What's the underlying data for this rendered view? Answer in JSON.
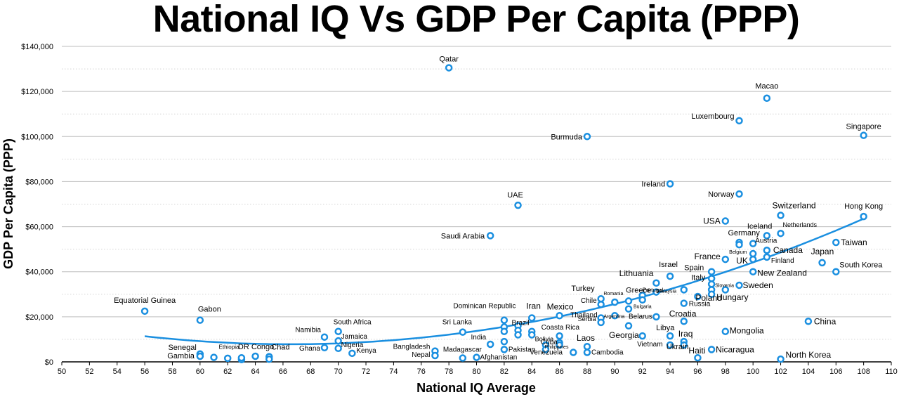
{
  "chart_data": {
    "type": "scatter",
    "title": "National IQ Vs GDP Per Capita (PPP)",
    "xlabel": "National IQ Average",
    "ylabel": "GDP Per Capita (PPP)",
    "xlim": [
      50,
      110
    ],
    "ylim": [
      0,
      140000
    ],
    "x_ticks": [
      "50",
      "52",
      "54",
      "56",
      "58",
      "60",
      "62",
      "64",
      "66",
      "68",
      "70",
      "72",
      "74",
      "76",
      "78",
      "80",
      "82",
      "84",
      "86",
      "88",
      "90",
      "92",
      "94",
      "96",
      "98",
      "100",
      "102",
      "104",
      "106",
      "108",
      "110"
    ],
    "y_ticks": [
      "$0",
      "$20,000",
      "$40,000",
      "$60,000",
      "$80,000",
      "$100,000",
      "$120,000",
      "$140,000"
    ],
    "grid": true,
    "colors": {
      "marker": "#1a8fe0",
      "trend": "#1a8fe0",
      "grid_major": "#bdbdbd",
      "grid_minor": "#d4d4d4"
    },
    "trendline": {
      "type": "polynomial",
      "x_range": [
        56,
        108
      ]
    },
    "points": [
      {
        "label": "Equatorial Guinea",
        "x": 56,
        "y": 22500
      },
      {
        "label": "Gabon",
        "x": 60,
        "y": 18500
      },
      {
        "label": "Senegal",
        "x": 60,
        "y": 3500
      },
      {
        "label": "Gambia",
        "x": 60,
        "y": 2500
      },
      {
        "label": "Ethiopia",
        "x": 61,
        "y": 2000
      },
      {
        "label": "",
        "x": 62,
        "y": 1600
      },
      {
        "label": "DR Congo",
        "x": 63,
        "y": 1000
      },
      {
        "label": "",
        "x": 63,
        "y": 1800
      },
      {
        "label": "",
        "x": 64,
        "y": 2500
      },
      {
        "label": "Chad",
        "x": 65,
        "y": 2300
      },
      {
        "label": "",
        "x": 65,
        "y": 1200
      },
      {
        "label": "Namibia",
        "x": 69,
        "y": 11000
      },
      {
        "label": "Ghana",
        "x": 69,
        "y": 6300
      },
      {
        "label": "South Africa",
        "x": 70,
        "y": 13500
      },
      {
        "label": "Jamaica",
        "x": 70,
        "y": 9300
      },
      {
        "label": "Nigeria",
        "x": 70,
        "y": 6000
      },
      {
        "label": "Kenya",
        "x": 71,
        "y": 3800
      },
      {
        "label": "Qatar",
        "x": 78,
        "y": 130500
      },
      {
        "label": "Sri Lanka",
        "x": 79,
        "y": 13200
      },
      {
        "label": "Bangladesh",
        "x": 77,
        "y": 4800
      },
      {
        "label": "Nepal",
        "x": 77,
        "y": 2800
      },
      {
        "label": "Madagascar",
        "x": 79,
        "y": 1700
      },
      {
        "label": "Afghanistan",
        "x": 80,
        "y": 2000
      },
      {
        "label": "India",
        "x": 81,
        "y": 7800
      },
      {
        "label": "Saudi Arabia",
        "x": 81,
        "y": 56000
      },
      {
        "label": "Dominican Republic",
        "x": 82,
        "y": 18500
      },
      {
        "label": "",
        "x": 82,
        "y": 15500
      },
      {
        "label": "",
        "x": 82,
        "y": 13500
      },
      {
        "label": "",
        "x": 82,
        "y": 9000
      },
      {
        "label": "Pakistan",
        "x": 82,
        "y": 5500
      },
      {
        "label": "UAE",
        "x": 83,
        "y": 69500
      },
      {
        "label": "Brazil",
        "x": 83,
        "y": 16000
      },
      {
        "label": "",
        "x": 83,
        "y": 14000
      },
      {
        "label": "",
        "x": 83,
        "y": 12000
      },
      {
        "label": "Iran",
        "x": 84,
        "y": 19500
      },
      {
        "label": "",
        "x": 84,
        "y": 13500
      },
      {
        "label": "",
        "x": 84,
        "y": 12000
      },
      {
        "label": "Cuba",
        "x": 85,
        "y": 7500
      },
      {
        "label": "",
        "x": 85,
        "y": 5500
      },
      {
        "label": "Bolivia",
        "x": 86,
        "y": 8500
      },
      {
        "label": "Coasta Rica",
        "x": 86,
        "y": 11500
      },
      {
        "label": "Philippines",
        "x": 86,
        "y": 7500
      },
      {
        "label": "Mexico",
        "x": 86,
        "y": 20500
      },
      {
        "label": "Venezuela",
        "x": 87,
        "y": 4200
      },
      {
        "label": "Laos",
        "x": 88,
        "y": 6800
      },
      {
        "label": "Cambodia",
        "x": 88,
        "y": 4200
      },
      {
        "label": "Burmuda",
        "x": 88,
        "y": 100000
      },
      {
        "label": "Turkey",
        "x": 89,
        "y": 28000
      },
      {
        "label": "Chile",
        "x": 89,
        "y": 25500
      },
      {
        "label": "Thailand",
        "x": 89,
        "y": 19500
      },
      {
        "label": "Serbia",
        "x": 89,
        "y": 17500
      },
      {
        "label": "Romania",
        "x": 90,
        "y": 26500
      },
      {
        "label": "Argentina",
        "x": 90,
        "y": 20500
      },
      {
        "label": "Greece",
        "x": 91,
        "y": 27000
      },
      {
        "label": "Bulgaria",
        "x": 91,
        "y": 23500
      },
      {
        "label": "Belarus",
        "x": 91,
        "y": 16000
      },
      {
        "label": "Georgia",
        "x": 92,
        "y": 11500
      },
      {
        "label": "Portugal",
        "x": 92,
        "y": 29500
      },
      {
        "label": "",
        "x": 92,
        "y": 27500
      },
      {
        "label": "Malaysia",
        "x": 93,
        "y": 31000
      },
      {
        "label": "Lithuania",
        "x": 93,
        "y": 35000
      },
      {
        "label": "",
        "x": 93,
        "y": 20000
      },
      {
        "label": "Israel",
        "x": 94,
        "y": 38000
      },
      {
        "label": "Ireland",
        "x": 94,
        "y": 79000
      },
      {
        "label": "Libya",
        "x": 94,
        "y": 11500
      },
      {
        "label": "Vietnam",
        "x": 94,
        "y": 7500
      },
      {
        "label": "Russia",
        "x": 95,
        "y": 26000
      },
      {
        "label": "",
        "x": 95,
        "y": 32000
      },
      {
        "label": "Croatia",
        "x": 95,
        "y": 18000
      },
      {
        "label": "Iraq",
        "x": 95,
        "y": 9000
      },
      {
        "label": "Ukrain",
        "x": 95,
        "y": 7500
      },
      {
        "label": "Haiti",
        "x": 96,
        "y": 1800
      },
      {
        "label": "Poland",
        "x": 96,
        "y": 29000
      },
      {
        "label": "Spain",
        "x": 97,
        "y": 40000
      },
      {
        "label": "Italy",
        "x": 97,
        "y": 37000
      },
      {
        "label": "Slovenia",
        "x": 97,
        "y": 34500
      },
      {
        "label": "",
        "x": 97,
        "y": 32000
      },
      {
        "label": "Hungary",
        "x": 97,
        "y": 30000
      },
      {
        "label": "Nicaragua",
        "x": 97,
        "y": 5500
      },
      {
        "label": "Mongolia",
        "x": 98,
        "y": 13500
      },
      {
        "label": "France",
        "x": 98,
        "y": 45500
      },
      {
        "label": "",
        "x": 98,
        "y": 32000
      },
      {
        "label": "USA",
        "x": 98,
        "y": 62500
      },
      {
        "label": "Luxembourg",
        "x": 99,
        "y": 107000
      },
      {
        "label": "Norway",
        "x": 99,
        "y": 74500
      },
      {
        "label": "Germany",
        "x": 99,
        "y": 53000
      },
      {
        "label": "",
        "x": 99,
        "y": 52000
      },
      {
        "label": "Sweden",
        "x": 99,
        "y": 34000
      },
      {
        "label": "Austria",
        "x": 100,
        "y": 52500
      },
      {
        "label": "Belgium",
        "x": 100,
        "y": 48000
      },
      {
        "label": "UK",
        "x": 100,
        "y": 45500
      },
      {
        "label": "New Zealand",
        "x": 100,
        "y": 40000
      },
      {
        "label": "Iceland",
        "x": 101,
        "y": 56000
      },
      {
        "label": "Canada",
        "x": 101,
        "y": 49500
      },
      {
        "label": "Finland",
        "x": 101,
        "y": 46500
      },
      {
        "label": "Macao",
        "x": 101,
        "y": 117000
      },
      {
        "label": "Switzerland",
        "x": 102,
        "y": 65000
      },
      {
        "label": "Netherlands",
        "x": 102,
        "y": 57000
      },
      {
        "label": "North Korea",
        "x": 102,
        "y": 1200
      },
      {
        "label": "China",
        "x": 104,
        "y": 18000
      },
      {
        "label": "Japan",
        "x": 105,
        "y": 44000
      },
      {
        "label": "Taiwan",
        "x": 106,
        "y": 53000
      },
      {
        "label": "South Korea",
        "x": 106,
        "y": 40000
      },
      {
        "label": "Hong Kong",
        "x": 108,
        "y": 64500
      },
      {
        "label": "Singapore",
        "x": 108,
        "y": 100500
      }
    ]
  }
}
